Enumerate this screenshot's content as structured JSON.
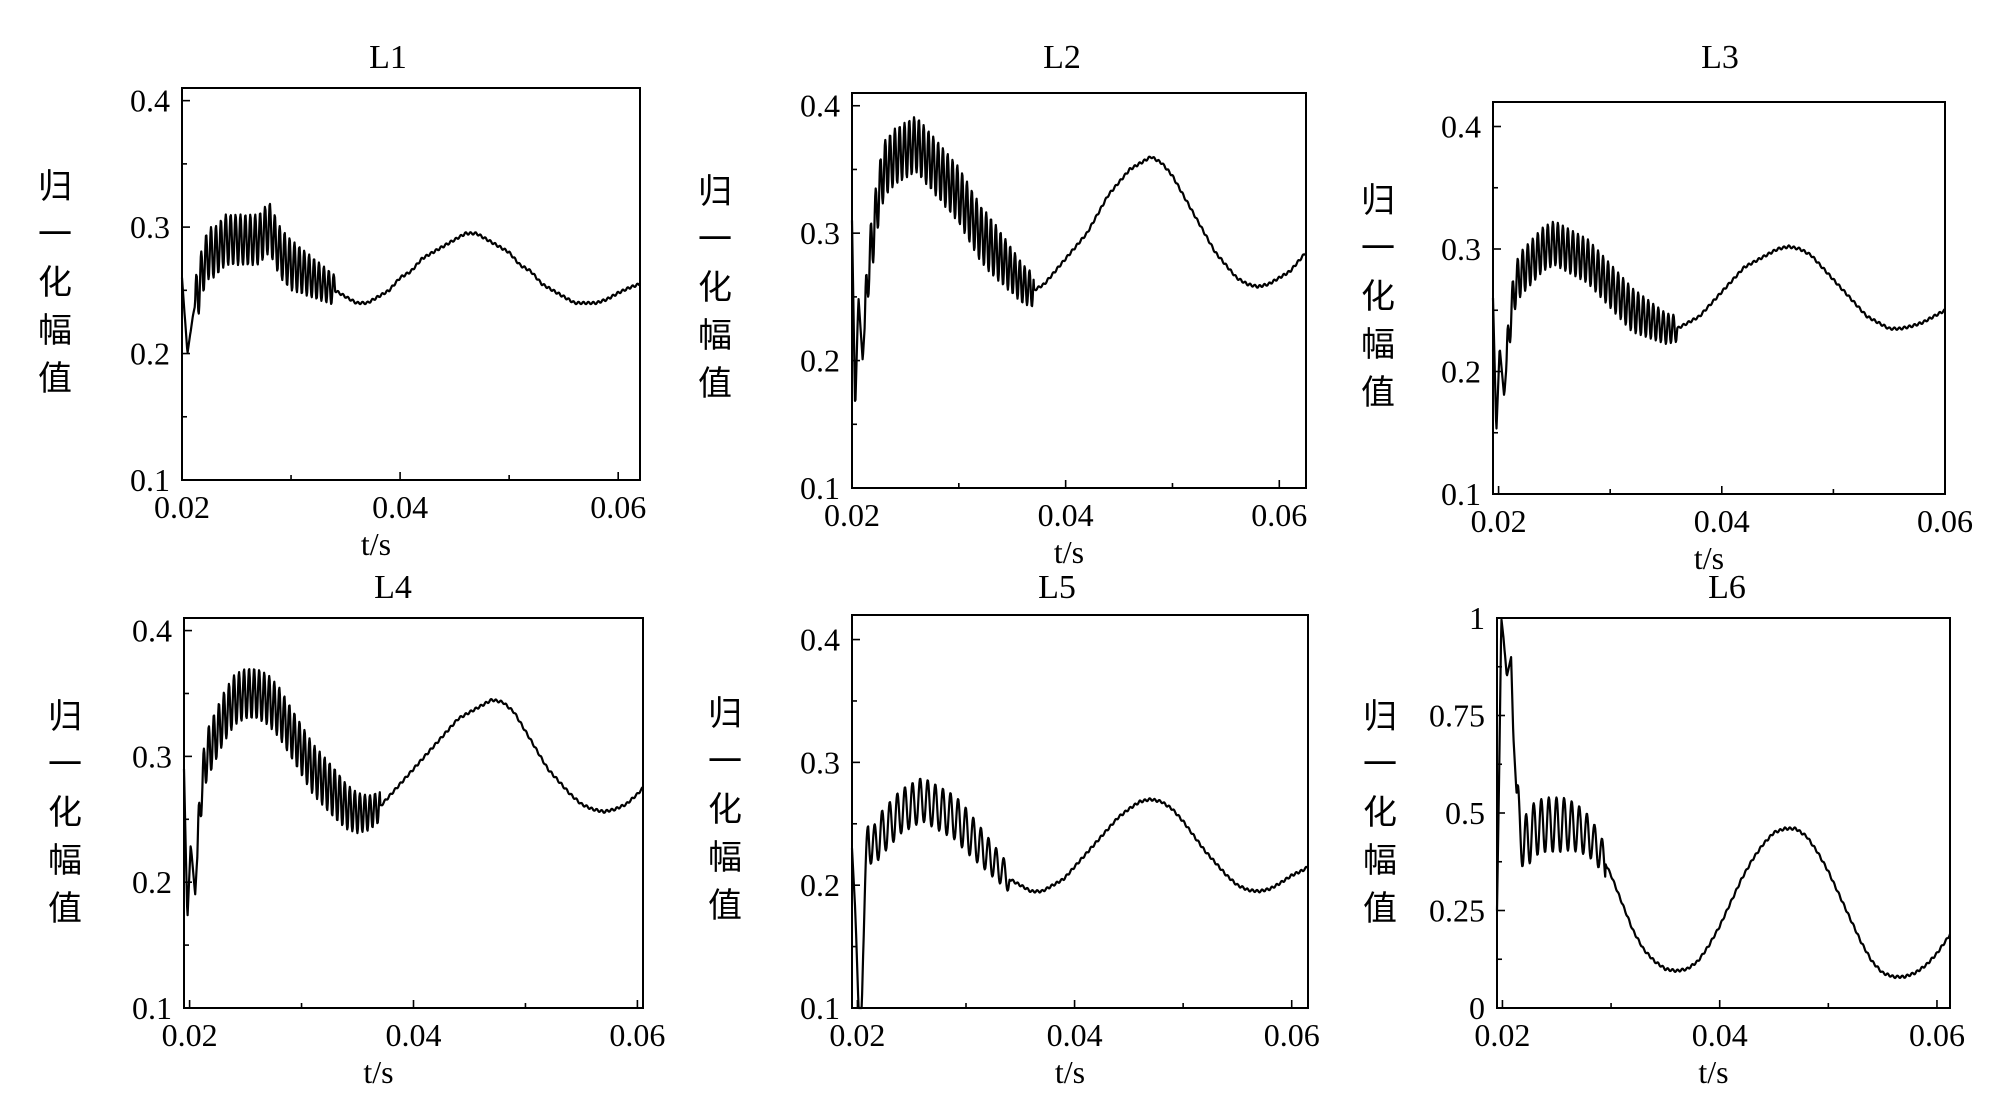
{
  "chart_data": [
    {
      "type": "line",
      "title": "L1",
      "xlabel": "t/s",
      "ylabel": "归一化幅值",
      "xlim": [
        0.02,
        0.062
      ],
      "ylim": [
        0.1,
        0.41
      ],
      "xticks": [
        0.02,
        0.04,
        0.06
      ],
      "xtick_labels": [
        "0.02",
        "0.04",
        "0.06"
      ],
      "yticks": [
        0.1,
        0.2,
        0.3,
        0.4
      ],
      "ytick_labels": [
        "0.1",
        "0.2",
        "0.3",
        "0.4"
      ],
      "series": [
        {
          "values_description": "",
          "x": [
            0.02,
            0.0205,
            0.021,
            0.0215,
            0.022,
            0.0225,
            0.023,
            0.024,
            0.025,
            0.026,
            0.027,
            0.028,
            0.029,
            0.03,
            0.031,
            0.032,
            0.033,
            0.034,
            0.035,
            0.036,
            0.037,
            0.038,
            0.039,
            0.04,
            0.041,
            0.042,
            0.043,
            0.044,
            0.045,
            0.046,
            0.047,
            0.048,
            0.049,
            0.05,
            0.051,
            0.052,
            0.053,
            0.054,
            0.055,
            0.056,
            0.057,
            0.058,
            0.059,
            0.06,
            0.061,
            0.062
          ],
          "y": [
            0.26,
            0.2,
            0.23,
            0.25,
            0.27,
            0.28,
            0.28,
            0.29,
            0.29,
            0.29,
            0.29,
            0.3,
            0.28,
            0.27,
            0.265,
            0.26,
            0.255,
            0.25,
            0.245,
            0.24,
            0.24,
            0.245,
            0.25,
            0.26,
            0.265,
            0.275,
            0.28,
            0.285,
            0.29,
            0.295,
            0.295,
            0.29,
            0.285,
            0.28,
            0.27,
            0.265,
            0.255,
            0.25,
            0.245,
            0.24,
            0.24,
            0.24,
            0.243,
            0.248,
            0.252,
            0.255
          ],
          "oscillation": {
            "amplitude": 0.02,
            "until_x": 0.034,
            "period": 0.00045
          }
        }
      ]
    },
    {
      "type": "line",
      "title": "L2",
      "xlabel": "t/s",
      "ylabel": "归一化幅值",
      "xlim": [
        0.02,
        0.0625
      ],
      "ylim": [
        0.1,
        0.41
      ],
      "xticks": [
        0.02,
        0.04,
        0.06
      ],
      "xtick_labels": [
        "0.02",
        "0.04",
        "0.06"
      ],
      "yticks": [
        0.1,
        0.2,
        0.3,
        0.4
      ],
      "ytick_labels": [
        "0.1",
        "0.2",
        "0.3",
        "0.4"
      ],
      "series": [
        {
          "x": [
            0.02,
            0.0203,
            0.0206,
            0.021,
            0.0215,
            0.022,
            0.0225,
            0.023,
            0.024,
            0.025,
            0.026,
            0.027,
            0.028,
            0.029,
            0.03,
            0.031,
            0.032,
            0.033,
            0.034,
            0.035,
            0.036,
            0.037,
            0.038,
            0.039,
            0.04,
            0.041,
            0.042,
            0.043,
            0.044,
            0.045,
            0.046,
            0.047,
            0.048,
            0.049,
            0.05,
            0.051,
            0.052,
            0.053,
            0.054,
            0.055,
            0.056,
            0.057,
            0.058,
            0.059,
            0.06,
            0.061,
            0.062,
            0.0625
          ],
          "y": [
            0.31,
            0.16,
            0.25,
            0.2,
            0.27,
            0.3,
            0.33,
            0.35,
            0.36,
            0.365,
            0.37,
            0.36,
            0.35,
            0.34,
            0.33,
            0.315,
            0.3,
            0.29,
            0.28,
            0.27,
            0.26,
            0.255,
            0.26,
            0.27,
            0.28,
            0.29,
            0.3,
            0.315,
            0.33,
            0.34,
            0.35,
            0.355,
            0.36,
            0.355,
            0.345,
            0.33,
            0.315,
            0.3,
            0.285,
            0.275,
            0.265,
            0.26,
            0.258,
            0.26,
            0.265,
            0.27,
            0.28,
            0.285
          ],
          "oscillation": {
            "amplitude": 0.022,
            "until_x": 0.037,
            "period": 0.00045
          }
        }
      ]
    },
    {
      "type": "line",
      "title": "L3",
      "xlabel": "t/s",
      "ylabel": "归一化幅值",
      "xlim": [
        0.0195,
        0.06
      ],
      "ylim": [
        0.1,
        0.42
      ],
      "xticks": [
        0.02,
        0.04,
        0.06
      ],
      "xtick_labels": [
        "0.02",
        "0.04",
        "0.06"
      ],
      "yticks": [
        0.1,
        0.2,
        0.3,
        0.4
      ],
      "ytick_labels": [
        "0.1",
        "0.2",
        "0.3",
        "0.4"
      ],
      "series": [
        {
          "x": [
            0.0195,
            0.0198,
            0.0201,
            0.0205,
            0.021,
            0.0215,
            0.022,
            0.023,
            0.024,
            0.025,
            0.026,
            0.027,
            0.028,
            0.029,
            0.03,
            0.031,
            0.032,
            0.033,
            0.034,
            0.035,
            0.036,
            0.037,
            0.038,
            0.039,
            0.04,
            0.041,
            0.042,
            0.043,
            0.044,
            0.045,
            0.046,
            0.047,
            0.048,
            0.049,
            0.05,
            0.051,
            0.052,
            0.053,
            0.054,
            0.055,
            0.056,
            0.057,
            0.058,
            0.059,
            0.06
          ],
          "y": [
            0.26,
            0.15,
            0.22,
            0.18,
            0.24,
            0.27,
            0.28,
            0.29,
            0.3,
            0.305,
            0.3,
            0.295,
            0.29,
            0.28,
            0.27,
            0.26,
            0.25,
            0.245,
            0.24,
            0.235,
            0.235,
            0.24,
            0.245,
            0.255,
            0.265,
            0.275,
            0.285,
            0.29,
            0.295,
            0.3,
            0.302,
            0.3,
            0.295,
            0.285,
            0.275,
            0.265,
            0.255,
            0.245,
            0.24,
            0.235,
            0.235,
            0.237,
            0.24,
            0.245,
            0.25
          ],
          "oscillation": {
            "amplitude": 0.018,
            "until_x": 0.036,
            "period": 0.00045
          }
        }
      ]
    },
    {
      "type": "line",
      "title": "L4",
      "xlabel": "t/s",
      "ylabel": "归一化幅值",
      "xlim": [
        0.0195,
        0.0605
      ],
      "ylim": [
        0.1,
        0.41
      ],
      "xticks": [
        0.02,
        0.04,
        0.06
      ],
      "xtick_labels": [
        "0.02",
        "0.04",
        "0.06"
      ],
      "yticks": [
        0.1,
        0.2,
        0.3,
        0.4
      ],
      "ytick_labels": [
        "0.1",
        "0.2",
        "0.3",
        "0.4"
      ],
      "series": [
        {
          "x": [
            0.0195,
            0.0198,
            0.0201,
            0.0205,
            0.021,
            0.0215,
            0.022,
            0.023,
            0.024,
            0.025,
            0.026,
            0.027,
            0.028,
            0.029,
            0.03,
            0.031,
            0.032,
            0.033,
            0.034,
            0.035,
            0.036,
            0.037,
            0.038,
            0.039,
            0.04,
            0.041,
            0.042,
            0.043,
            0.044,
            0.045,
            0.046,
            0.047,
            0.048,
            0.049,
            0.05,
            0.051,
            0.052,
            0.053,
            0.054,
            0.055,
            0.056,
            0.057,
            0.058,
            0.059,
            0.06,
            0.0605
          ],
          "y": [
            0.29,
            0.17,
            0.23,
            0.19,
            0.27,
            0.3,
            0.31,
            0.33,
            0.345,
            0.35,
            0.35,
            0.345,
            0.335,
            0.32,
            0.305,
            0.29,
            0.28,
            0.27,
            0.26,
            0.255,
            0.255,
            0.26,
            0.27,
            0.28,
            0.29,
            0.3,
            0.31,
            0.32,
            0.33,
            0.335,
            0.34,
            0.345,
            0.343,
            0.335,
            0.32,
            0.305,
            0.29,
            0.28,
            0.27,
            0.262,
            0.258,
            0.256,
            0.258,
            0.262,
            0.27,
            0.275
          ],
          "oscillation": {
            "amplitude": 0.02,
            "until_x": 0.037,
            "period": 0.00045
          }
        }
      ]
    },
    {
      "type": "line",
      "title": "L5",
      "xlabel": "t/s",
      "ylabel": "归一化幅值",
      "xlim": [
        0.0195,
        0.0615
      ],
      "ylim": [
        0.1,
        0.42
      ],
      "xticks": [
        0.02,
        0.04,
        0.06
      ],
      "xtick_labels": [
        "0.02",
        "0.04",
        "0.06"
      ],
      "yticks": [
        0.1,
        0.2,
        0.3,
        0.4
      ],
      "ytick_labels": [
        "0.1",
        "0.2",
        "0.3",
        "0.4"
      ],
      "series": [
        {
          "x": [
            0.0195,
            0.0198,
            0.0201,
            0.0204,
            0.0207,
            0.021,
            0.0215,
            0.022,
            0.023,
            0.024,
            0.025,
            0.026,
            0.027,
            0.028,
            0.029,
            0.03,
            0.031,
            0.032,
            0.033,
            0.034,
            0.035,
            0.036,
            0.037,
            0.038,
            0.039,
            0.04,
            0.041,
            0.042,
            0.043,
            0.044,
            0.045,
            0.046,
            0.047,
            0.048,
            0.049,
            0.05,
            0.051,
            0.052,
            0.053,
            0.054,
            0.055,
            0.056,
            0.057,
            0.058,
            0.059,
            0.06,
            0.061,
            0.0615
          ],
          "y": [
            0.23,
            0.18,
            0.1,
            0.1,
            0.2,
            0.24,
            0.23,
            0.24,
            0.25,
            0.26,
            0.265,
            0.27,
            0.265,
            0.26,
            0.255,
            0.245,
            0.235,
            0.225,
            0.215,
            0.205,
            0.2,
            0.195,
            0.195,
            0.2,
            0.205,
            0.215,
            0.225,
            0.235,
            0.245,
            0.255,
            0.262,
            0.268,
            0.27,
            0.268,
            0.262,
            0.252,
            0.24,
            0.228,
            0.218,
            0.208,
            0.2,
            0.196,
            0.195,
            0.197,
            0.202,
            0.208,
            0.212,
            0.215
          ],
          "oscillation": {
            "amplitude": 0.018,
            "until_x": 0.034,
            "period": 0.0007
          }
        }
      ]
    },
    {
      "type": "line",
      "title": "L6",
      "xlabel": "t/s",
      "ylabel": "归一化幅值",
      "xlim": [
        0.0195,
        0.0612
      ],
      "ylim": [
        0,
        1.0
      ],
      "xticks": [
        0.02,
        0.04,
        0.06
      ],
      "xtick_labels": [
        "0.02",
        "0.04",
        "0.06"
      ],
      "yticks": [
        0,
        0.25,
        0.5,
        0.75,
        1
      ],
      "ytick_labels": [
        "0",
        "0.25",
        "0.5",
        "0.75",
        "1"
      ],
      "series": [
        {
          "x": [
            0.0195,
            0.0197,
            0.0199,
            0.0201,
            0.0204,
            0.0208,
            0.021,
            0.0213,
            0.0216,
            0.022,
            0.0225,
            0.023,
            0.024,
            0.025,
            0.026,
            0.027,
            0.028,
            0.029,
            0.03,
            0.031,
            0.032,
            0.033,
            0.034,
            0.035,
            0.036,
            0.037,
            0.038,
            0.039,
            0.04,
            0.041,
            0.042,
            0.043,
            0.044,
            0.045,
            0.046,
            0.047,
            0.048,
            0.049,
            0.05,
            0.051,
            0.052,
            0.053,
            0.054,
            0.055,
            0.056,
            0.057,
            0.058,
            0.059,
            0.06,
            0.061,
            0.0612
          ],
          "y": [
            0.25,
            0.6,
            1.0,
            0.95,
            0.85,
            0.9,
            0.7,
            0.55,
            0.45,
            0.42,
            0.44,
            0.46,
            0.47,
            0.47,
            0.47,
            0.46,
            0.44,
            0.4,
            0.34,
            0.27,
            0.2,
            0.15,
            0.12,
            0.1,
            0.095,
            0.1,
            0.12,
            0.16,
            0.21,
            0.27,
            0.33,
            0.38,
            0.42,
            0.45,
            0.46,
            0.46,
            0.44,
            0.4,
            0.35,
            0.29,
            0.23,
            0.17,
            0.12,
            0.09,
            0.08,
            0.08,
            0.09,
            0.11,
            0.14,
            0.18,
            0.19
          ],
          "oscillation": {
            "amplitude": 0.07,
            "until_x": 0.0295,
            "from_x": 0.0213,
            "period": 0.0007
          }
        }
      ]
    }
  ]
}
